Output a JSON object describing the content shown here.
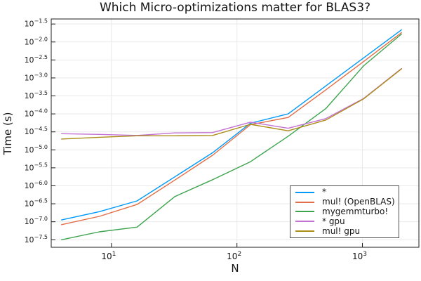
{
  "chart_data": {
    "type": "line",
    "title": "Which Micro-optimizations matter for BLAS3?",
    "xlabel": "N",
    "ylabel": "Time (s)",
    "x_scale": "log10",
    "y_scale": "log10",
    "x": [
      4,
      8,
      16,
      32,
      64,
      128,
      256,
      512,
      1024,
      2048
    ],
    "series": [
      {
        "name": "*",
        "color": "#009af9",
        "log10_y": [
          -6.95,
          -6.72,
          -6.42,
          -5.75,
          -5.08,
          -4.26,
          -4.0,
          -3.22,
          -2.44,
          -1.66
        ]
      },
      {
        "name": "mul! (OpenBLAS)",
        "color": "#e26e47",
        "log10_y": [
          -7.08,
          -6.85,
          -6.52,
          -5.84,
          -5.15,
          -4.3,
          -4.1,
          -3.33,
          -2.54,
          -1.74
        ]
      },
      {
        "name": "mygemmturbo!",
        "color": "#3da44e",
        "log10_y": [
          -7.5,
          -7.28,
          -7.15,
          -6.3,
          -5.83,
          -5.33,
          -4.62,
          -3.85,
          -2.66,
          -1.78
        ]
      },
      {
        "name": "* gpu",
        "color": "#c371d2",
        "log10_y": [
          -4.55,
          -4.57,
          -4.6,
          -4.53,
          -4.52,
          -4.23,
          -4.4,
          -4.13,
          -3.57,
          -2.74
        ]
      },
      {
        "name": "mul! gpu",
        "color": "#ac8d18",
        "log10_y": [
          -4.7,
          -4.65,
          -4.61,
          -4.61,
          -4.6,
          -4.29,
          -4.47,
          -4.17,
          -3.58,
          -2.75
        ]
      }
    ],
    "x_tick_exponents": [
      1,
      2,
      3
    ],
    "y_tick_exponents": [
      -1.5,
      -2.0,
      -2.5,
      -3.0,
      -3.5,
      -4.0,
      -4.5,
      -5.0,
      -5.5,
      -6.0,
      -6.5,
      -7.0,
      -7.5
    ],
    "xlim_log10": [
      0.52,
      3.45
    ],
    "ylim_log10": [
      -7.71,
      -1.36
    ],
    "grid": true,
    "legend_position": "bottom-right"
  },
  "colors": {
    "background": "#ffffff",
    "grid": "#e9e9e9",
    "frame": "#1c1c1c",
    "text": "#141414",
    "legend_border": "#4d4d4d"
  }
}
